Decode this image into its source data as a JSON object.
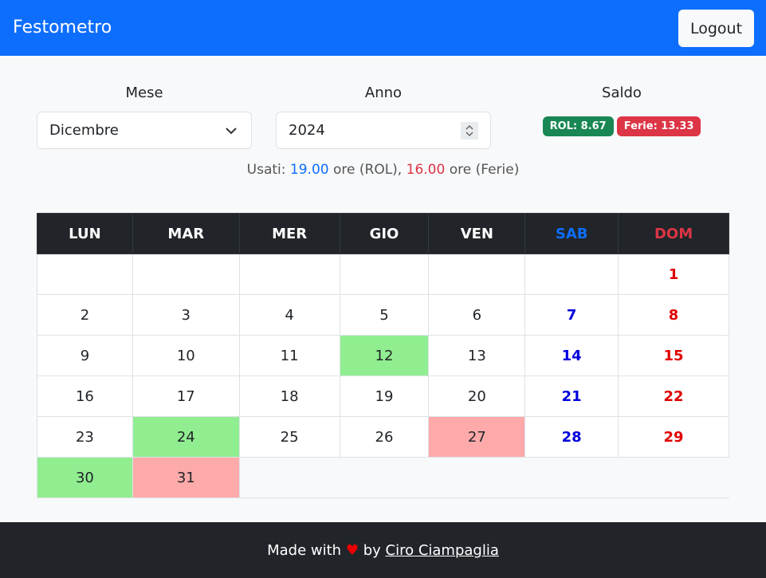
{
  "navbar": {
    "brand": "Festometro",
    "button": "Logout"
  },
  "form": {
    "month": {
      "label": "Mese",
      "value": "Dicembre"
    },
    "year": {
      "label": "Anno",
      "value": "2024"
    },
    "balance": {
      "label": "Saldo",
      "rol": "ROL: 8.67",
      "ferie": "Ferie: 13.33"
    }
  },
  "used": {
    "prefix": "Usati:",
    "rol_hours": "19.00",
    "rol_text": "ore (ROL),",
    "ferie_hours": "16.00",
    "ferie_text": "ore (Ferie)"
  },
  "calendar": {
    "headers": [
      "LUN",
      "MAR",
      "MER",
      "GIO",
      "VEN",
      "SAB",
      "DOM"
    ],
    "rows": [
      [
        null,
        null,
        null,
        null,
        null,
        null,
        1
      ],
      [
        2,
        3,
        4,
        5,
        6,
        7,
        8
      ],
      [
        9,
        10,
        11,
        {
          "value": 12,
          "color": "#90ee90"
        },
        13,
        14,
        15
      ],
      [
        16,
        17,
        18,
        19,
        20,
        21,
        22
      ],
      [
        23,
        {
          "value": 24,
          "color": "#90ee90"
        },
        25,
        26,
        {
          "value": 27,
          "color": "#ffaaaa"
        },
        28,
        29
      ],
      [
        {
          "value": 30,
          "color": "#90ee90"
        },
        {
          "value": 31,
          "color": "#ffaaaa"
        }
      ]
    ]
  },
  "footer": {
    "prefix": "Made with",
    "heart": "♥",
    "by": "by",
    "author": "Ciro Ciampaglia"
  }
}
